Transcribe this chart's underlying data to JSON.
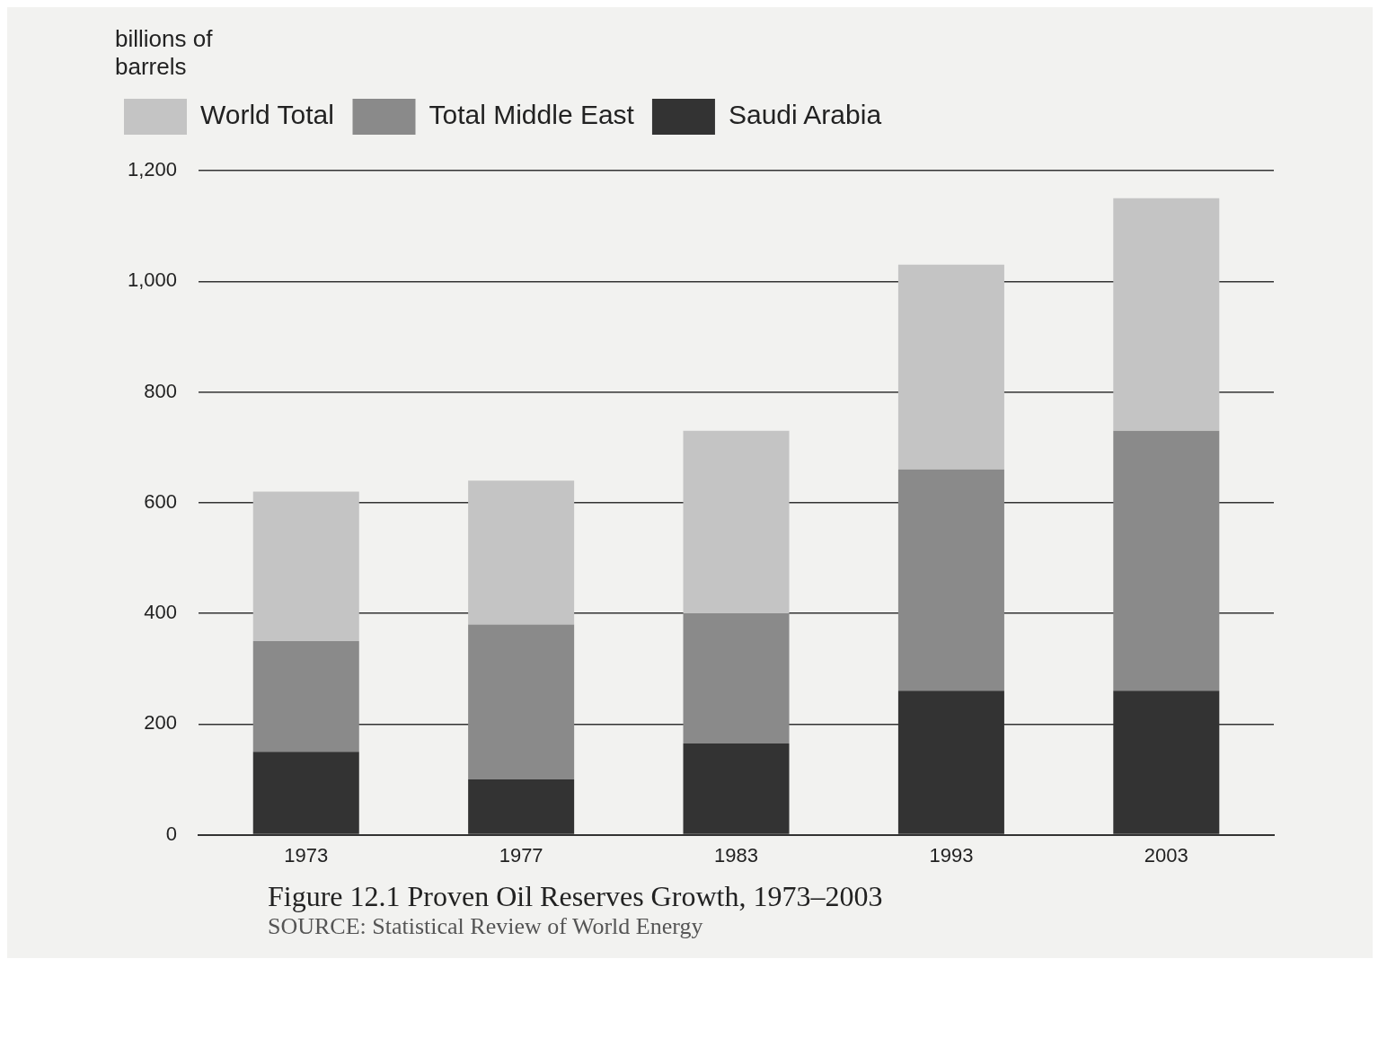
{
  "chart_data": {
    "type": "bar",
    "stacked": true,
    "title": "Figure 12.1 Proven Oil Reserves Growth, 1973–2003",
    "ylabel": "billions of barrels",
    "annotations": [
      "SOURCE: Statistical Review of World Energy"
    ],
    "categories": [
      "1973",
      "1977",
      "1983",
      "1993",
      "2003"
    ],
    "series": [
      {
        "name": "Saudi Arabia",
        "color": "#333333",
        "values": [
          150,
          100,
          165,
          260,
          260
        ]
      },
      {
        "name": "Total Middle East",
        "color": "#8a8a8a",
        "values": [
          200,
          280,
          235,
          400,
          470
        ]
      },
      {
        "name": "World Total",
        "color": "#c4c4c4",
        "values": [
          270,
          260,
          330,
          370,
          420
        ]
      }
    ],
    "ylim": [
      0,
      1200
    ],
    "yticks": [
      0,
      200,
      400,
      600,
      800,
      {
        "value": 1000,
        "label": "1,000"
      },
      {
        "value": 1200,
        "label": "1,200"
      }
    ],
    "grid": "y",
    "legend": "top left"
  }
}
